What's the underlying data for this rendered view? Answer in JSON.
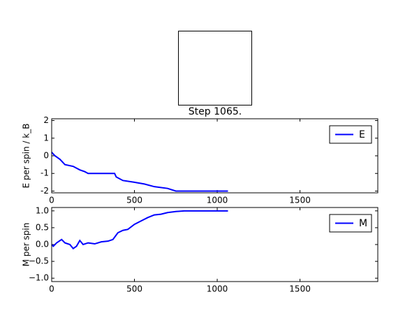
{
  "chart_data": [
    {
      "type": "line",
      "title": "Step 1065.",
      "ylabel": "E per spin / k_B",
      "x": [
        0,
        20,
        50,
        80,
        130,
        170,
        200,
        220,
        380,
        390,
        430,
        500,
        560,
        620,
        700,
        750,
        1065
      ],
      "series": [
        {
          "name": "E",
          "color": "#0000ff",
          "values": [
            0.2,
            0.0,
            -0.2,
            -0.5,
            -0.6,
            -0.8,
            -0.9,
            -1.0,
            -1.0,
            -1.2,
            -1.4,
            -1.5,
            -1.6,
            -1.75,
            -1.85,
            -2.0,
            -2.0
          ]
        }
      ],
      "xlim": [
        0,
        1970
      ],
      "ylim": [
        -2.1,
        2.1
      ],
      "xticks": [
        0,
        500,
        1000,
        1500
      ],
      "yticks": [
        -2,
        -1,
        0,
        1,
        2
      ],
      "legend": "upper right"
    },
    {
      "type": "line",
      "ylabel": "M per spin",
      "x": [
        0,
        10,
        30,
        60,
        80,
        110,
        130,
        150,
        170,
        190,
        220,
        260,
        300,
        340,
        370,
        400,
        430,
        460,
        500,
        540,
        580,
        620,
        660,
        700,
        750,
        800,
        1065
      ],
      "series": [
        {
          "name": "M",
          "color": "#0000ff",
          "values": [
            0.0,
            -0.05,
            0.05,
            0.15,
            0.05,
            0.0,
            -0.12,
            -0.05,
            0.12,
            0.0,
            0.05,
            0.02,
            0.08,
            0.1,
            0.15,
            0.35,
            0.42,
            0.45,
            0.6,
            0.7,
            0.8,
            0.88,
            0.9,
            0.95,
            0.98,
            1.0,
            1.0
          ]
        }
      ],
      "xlim": [
        0,
        1970
      ],
      "ylim": [
        -1.1,
        1.1
      ],
      "xticks": [
        0,
        500,
        1000,
        1500
      ],
      "yticks": [
        {
          "value": -1,
          "label": "−1.0"
        },
        {
          "value": -0.5,
          "label": "−0.5"
        },
        {
          "value": 0,
          "label": "0.0"
        },
        {
          "value": 0.5,
          "label": "0.5"
        },
        {
          "value": 1,
          "label": "1.0"
        }
      ],
      "legend": "upper right"
    }
  ]
}
